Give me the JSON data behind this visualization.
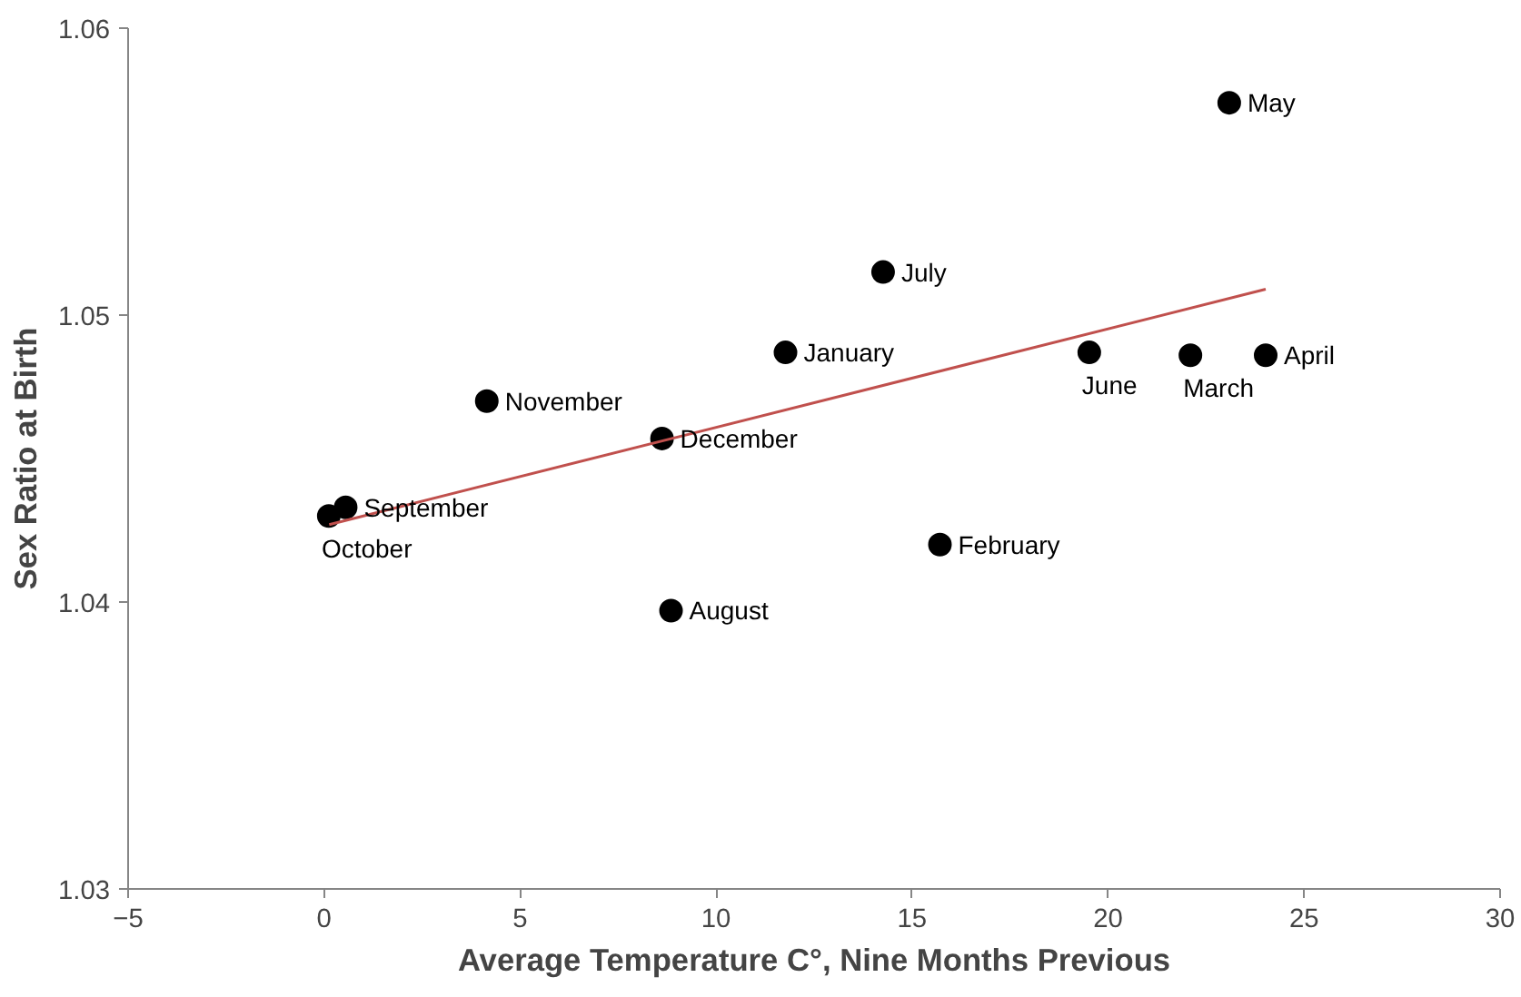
{
  "chart_data": {
    "type": "scatter",
    "xlabel": "Average Temperature C°, Nine Months Previous",
    "ylabel": "Sex Ratio at Birth",
    "x": [
      23.09,
      14.26,
      11.77,
      19.52,
      22.1,
      24.02,
      4.15,
      8.62,
      0.55,
      0.12,
      15.71,
      8.85
    ],
    "series": [
      {
        "color": "#000000",
        "values": [
          1.0574,
          1.0515,
          1.0487,
          1.0487,
          1.0486,
          1.0486,
          1.047,
          1.0457,
          1.0433,
          1.043,
          1.042,
          1.0397
        ]
      },
      {
        "type": "line",
        "marker": "none",
        "color": "#c0504d",
        "x": [
          0.13,
          24.02
        ],
        "values": [
          1.0427,
          1.0509
        ]
      }
    ],
    "annotations": [
      {
        "text": "May",
        "x": 23.09,
        "y": 1.0574
      },
      {
        "text": "July",
        "x": 14.26,
        "y": 1.0515
      },
      {
        "text": "January",
        "x": 11.77,
        "y": 1.0487
      },
      {
        "text": "June",
        "x": 19.52,
        "y": 1.0487
      },
      {
        "text": "March",
        "x": 22.1,
        "y": 1.0486
      },
      {
        "text": "April",
        "x": 24.02,
        "y": 1.0486
      },
      {
        "text": "November",
        "x": 4.15,
        "y": 1.047
      },
      {
        "text": "December",
        "x": 8.62,
        "y": 1.0457
      },
      {
        "text": "September",
        "x": 0.55,
        "y": 1.0433
      },
      {
        "text": "October",
        "x": 0.12,
        "y": 1.043
      },
      {
        "text": "February",
        "x": 15.71,
        "y": 1.042
      },
      {
        "text": "August",
        "x": 8.85,
        "y": 1.0397
      }
    ],
    "xlim": [
      -5,
      30
    ],
    "xticks": [
      -5,
      0,
      5,
      10,
      15,
      20,
      25,
      30
    ],
    "ylim": [
      1.03,
      1.06
    ],
    "yticks": [
      {
        "value": 1.03,
        "label": "1.03"
      },
      {
        "value": 1.04,
        "label": "1.04"
      },
      {
        "value": 1.05,
        "label": "1.05"
      },
      {
        "value": 1.06,
        "label": "1.06"
      }
    ],
    "marker": "circle",
    "grid": false
  }
}
